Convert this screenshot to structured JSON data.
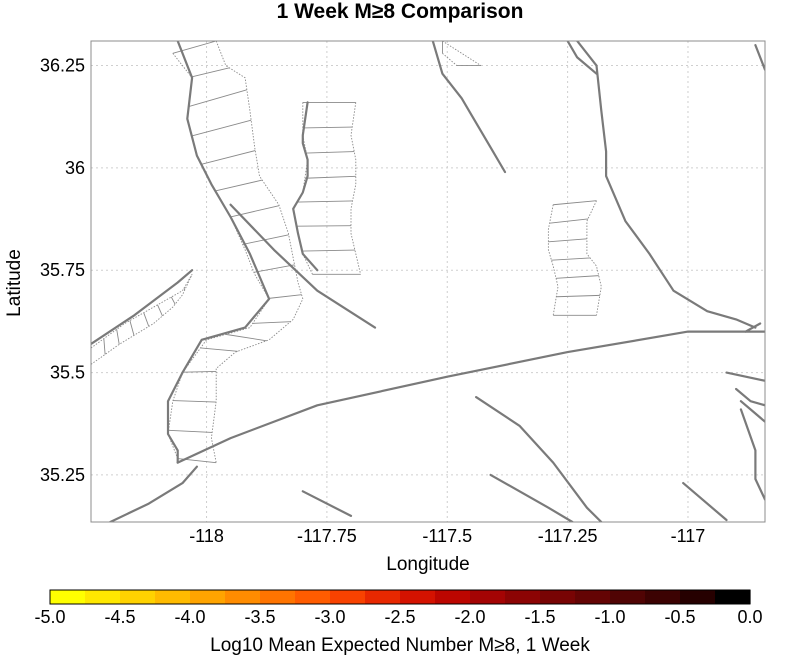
{
  "title": "1 Week M≥8 Comparison",
  "x_axis": {
    "label": "Longitude",
    "range": [
      -118.24,
      -116.84
    ],
    "ticks": [
      {
        "value": -118,
        "label": "-118"
      },
      {
        "value": -117.75,
        "label": "-117.75"
      },
      {
        "value": -117.5,
        "label": "-117.5"
      },
      {
        "value": -117.25,
        "label": "-117.25"
      },
      {
        "value": -117,
        "label": "-117"
      }
    ]
  },
  "y_axis": {
    "label": "Latitude",
    "range": [
      35.135,
      36.31
    ],
    "ticks": [
      {
        "value": 36.25,
        "label": "36.25"
      },
      {
        "value": 36,
        "label": "36"
      },
      {
        "value": 35.75,
        "label": "35.75"
      },
      {
        "value": 35.5,
        "label": "35.5"
      },
      {
        "value": 35.25,
        "label": "35.25"
      }
    ]
  },
  "grid": true,
  "colorbar": {
    "label": "Log10 Mean Expected Number M≥8, 1 Week",
    "range": [
      -5.0,
      0.0
    ],
    "ticks": [
      {
        "value": -5.0,
        "label": "-5.0"
      },
      {
        "value": -4.5,
        "label": "-4.5"
      },
      {
        "value": -4.0,
        "label": "-4.0"
      },
      {
        "value": -3.5,
        "label": "-3.5"
      },
      {
        "value": -3.0,
        "label": "-3.0"
      },
      {
        "value": -2.5,
        "label": "-2.5"
      },
      {
        "value": -2.0,
        "label": "-2.0"
      },
      {
        "value": -1.5,
        "label": "-1.5"
      },
      {
        "value": -1.0,
        "label": "-1.0"
      },
      {
        "value": -0.5,
        "label": "-0.5"
      },
      {
        "value": 0.0,
        "label": "0.0"
      }
    ],
    "colors": [
      "#ffff00",
      "#ffe800",
      "#ffd200",
      "#ffbb00",
      "#ffa400",
      "#ff8c00",
      "#ff7400",
      "#ff5c00",
      "#f84200",
      "#e82800",
      "#d41200",
      "#bc0600",
      "#a40404",
      "#8c0404",
      "#780404",
      "#640404",
      "#500404",
      "#3c0202",
      "#260000",
      "#000000"
    ]
  },
  "colors": {
    "fault": "#7a7a7a",
    "rupture": "#8a8a8a",
    "grid": "#cfcfcf"
  },
  "faults": [
    [
      [
        -118.06,
        36.31
      ],
      [
        -118.03,
        36.22
      ],
      [
        -118.04,
        36.12
      ],
      [
        -118.02,
        36.03
      ],
      [
        -117.99,
        35.96
      ],
      [
        -117.95,
        35.88
      ],
      [
        -117.91,
        35.79
      ],
      [
        -117.87,
        35.68
      ],
      [
        -117.92,
        35.61
      ],
      [
        -118.01,
        35.58
      ],
      [
        -118.05,
        35.5
      ],
      [
        -118.08,
        35.43
      ],
      [
        -118.08,
        35.35
      ],
      [
        -118.06,
        35.31
      ],
      [
        -118.06,
        35.28
      ]
    ],
    [
      [
        -117.79,
        36.16
      ],
      [
        -117.8,
        36.08
      ],
      [
        -117.8,
        36.06
      ],
      [
        -117.79,
        36.02
      ],
      [
        -117.79,
        35.98
      ],
      [
        -117.8,
        35.94
      ],
      [
        -117.82,
        35.9
      ],
      [
        -117.81,
        35.84
      ],
      [
        -117.8,
        35.79
      ],
      [
        -117.77,
        35.75
      ]
    ],
    [
      [
        -117.95,
        35.91
      ],
      [
        -117.86,
        35.8
      ],
      [
        -117.77,
        35.7
      ],
      [
        -117.65,
        35.61
      ]
    ],
    [
      [
        -118.06,
        35.28
      ],
      [
        -117.95,
        35.34
      ],
      [
        -117.77,
        35.42
      ],
      [
        -117.5,
        35.49
      ],
      [
        -117.25,
        35.55
      ],
      [
        -117.0,
        35.6
      ],
      [
        -116.84,
        35.6
      ]
    ],
    [
      [
        -117.53,
        36.31
      ],
      [
        -117.51,
        36.23
      ],
      [
        -117.47,
        36.17
      ],
      [
        -117.45,
        36.13
      ],
      [
        -117.41,
        36.05
      ],
      [
        -117.38,
        35.99
      ]
    ],
    [
      [
        -117.23,
        36.31
      ],
      [
        -117.19,
        36.25
      ],
      [
        -117.18,
        36.14
      ],
      [
        -117.17,
        36.04
      ],
      [
        -117.17,
        35.98
      ],
      [
        -117.13,
        35.87
      ],
      [
        -117.08,
        35.79
      ],
      [
        -117.03,
        35.7
      ],
      [
        -116.96,
        35.65
      ],
      [
        -116.9,
        35.63
      ],
      [
        -116.86,
        35.61
      ]
    ],
    [
      [
        -117.25,
        36.31
      ],
      [
        -117.23,
        36.27
      ],
      [
        -117.19,
        36.23
      ]
    ],
    [
      [
        -116.85,
        35.62
      ],
      [
        -116.88,
        35.6
      ]
    ],
    [
      [
        -118.24,
        35.57
      ],
      [
        -118.15,
        35.64
      ],
      [
        -118.06,
        35.72
      ],
      [
        -118.03,
        35.75
      ]
    ],
    [
      [
        -118.2,
        35.135
      ],
      [
        -118.12,
        35.18
      ],
      [
        -118.05,
        35.23
      ],
      [
        -118.02,
        35.27
      ]
    ],
    [
      [
        -117.8,
        35.21
      ],
      [
        -117.7,
        35.15
      ]
    ],
    [
      [
        -117.44,
        35.44
      ],
      [
        -117.35,
        35.37
      ],
      [
        -117.28,
        35.28
      ],
      [
        -117.21,
        35.17
      ],
      [
        -117.18,
        35.135
      ]
    ],
    [
      [
        -117.41,
        35.25
      ],
      [
        -117.29,
        35.17
      ],
      [
        -117.24,
        35.135
      ]
    ],
    [
      [
        -116.92,
        35.5
      ],
      [
        -116.84,
        35.48
      ]
    ],
    [
      [
        -116.9,
        35.46
      ],
      [
        -116.87,
        35.43
      ],
      [
        -116.84,
        35.42
      ]
    ],
    [
      [
        -116.89,
        35.41
      ],
      [
        -116.86,
        35.31
      ],
      [
        -116.86,
        35.24
      ],
      [
        -116.84,
        35.19
      ]
    ],
    [
      [
        -116.89,
        35.43
      ],
      [
        -116.86,
        35.4
      ],
      [
        -116.84,
        35.38
      ]
    ],
    [
      [
        -116.86,
        36.3
      ],
      [
        -116.84,
        36.24
      ]
    ],
    [
      [
        -117.01,
        35.23
      ],
      [
        -116.92,
        35.14
      ]
    ]
  ],
  "ruptures": [
    {
      "left": [
        [
          -118.07,
          36.28
        ],
        [
          -118.03,
          36.22
        ],
        [
          -118.04,
          36.12
        ],
        [
          -118.02,
          36.03
        ],
        [
          -117.99,
          35.96
        ],
        [
          -117.95,
          35.88
        ],
        [
          -117.92,
          35.8
        ],
        [
          -117.9,
          35.74
        ],
        [
          -117.87,
          35.68
        ],
        [
          -117.91,
          35.61
        ],
        [
          -118.0,
          35.58
        ],
        [
          -118.05,
          35.5
        ],
        [
          -118.07,
          35.43
        ],
        [
          -118.08,
          35.35
        ],
        [
          -118.06,
          35.29
        ]
      ],
      "right": [
        [
          -117.98,
          36.31
        ],
        [
          -117.96,
          36.25
        ],
        [
          -117.92,
          36.22
        ],
        [
          -117.91,
          36.14
        ],
        [
          -117.9,
          36.05
        ],
        [
          -117.89,
          35.98
        ],
        [
          -117.85,
          35.91
        ],
        [
          -117.83,
          35.84
        ],
        [
          -117.82,
          35.78
        ],
        [
          -117.81,
          35.72
        ],
        [
          -117.8,
          35.68
        ],
        [
          -117.82,
          35.63
        ],
        [
          -117.87,
          35.58
        ],
        [
          -117.94,
          35.55
        ],
        [
          -117.98,
          35.51
        ],
        [
          -117.98,
          35.43
        ],
        [
          -117.99,
          35.34
        ],
        [
          -117.98,
          35.28
        ]
      ],
      "rungs": 17
    },
    {
      "left": [
        [
          -117.8,
          36.16
        ],
        [
          -117.8,
          36.08
        ],
        [
          -117.79,
          36.02
        ],
        [
          -117.8,
          35.94
        ],
        [
          -117.82,
          35.9
        ],
        [
          -117.81,
          35.84
        ],
        [
          -117.8,
          35.79
        ],
        [
          -117.78,
          35.74
        ]
      ],
      "right": [
        [
          -117.69,
          36.16
        ],
        [
          -117.7,
          36.08
        ],
        [
          -117.69,
          36.02
        ],
        [
          -117.69,
          35.96
        ],
        [
          -117.7,
          35.9
        ],
        [
          -117.7,
          35.84
        ],
        [
          -117.69,
          35.79
        ],
        [
          -117.68,
          35.74
        ]
      ],
      "rungs": 8
    },
    {
      "left": [
        [
          -117.28,
          35.91
        ],
        [
          -117.29,
          35.85
        ],
        [
          -117.29,
          35.8
        ],
        [
          -117.28,
          35.76
        ],
        [
          -117.27,
          35.71
        ],
        [
          -117.28,
          35.64
        ]
      ],
      "right": [
        [
          -117.19,
          35.92
        ],
        [
          -117.21,
          35.87
        ],
        [
          -117.21,
          35.79
        ],
        [
          -117.19,
          35.76
        ],
        [
          -117.18,
          35.71
        ],
        [
          -117.19,
          35.64
        ]
      ],
      "rungs": 7
    },
    {
      "left": [
        [
          -118.24,
          35.52
        ],
        [
          -118.18,
          35.57
        ],
        [
          -118.11,
          35.62
        ],
        [
          -118.07,
          35.66
        ],
        [
          -118.05,
          35.69
        ],
        [
          -118.03,
          35.74
        ]
      ],
      "right": [
        [
          -118.24,
          35.56
        ],
        [
          -118.17,
          35.62
        ],
        [
          -118.11,
          35.66
        ],
        [
          -118.05,
          35.7
        ],
        [
          -118.03,
          35.74
        ]
      ],
      "rungs": 9
    },
    {
      "left": [
        [
          -117.51,
          36.28
        ],
        [
          -117.48,
          36.25
        ]
      ],
      "right": [
        [
          -117.51,
          36.31
        ],
        [
          -117.43,
          36.25
        ]
      ],
      "rungs": 2
    }
  ]
}
